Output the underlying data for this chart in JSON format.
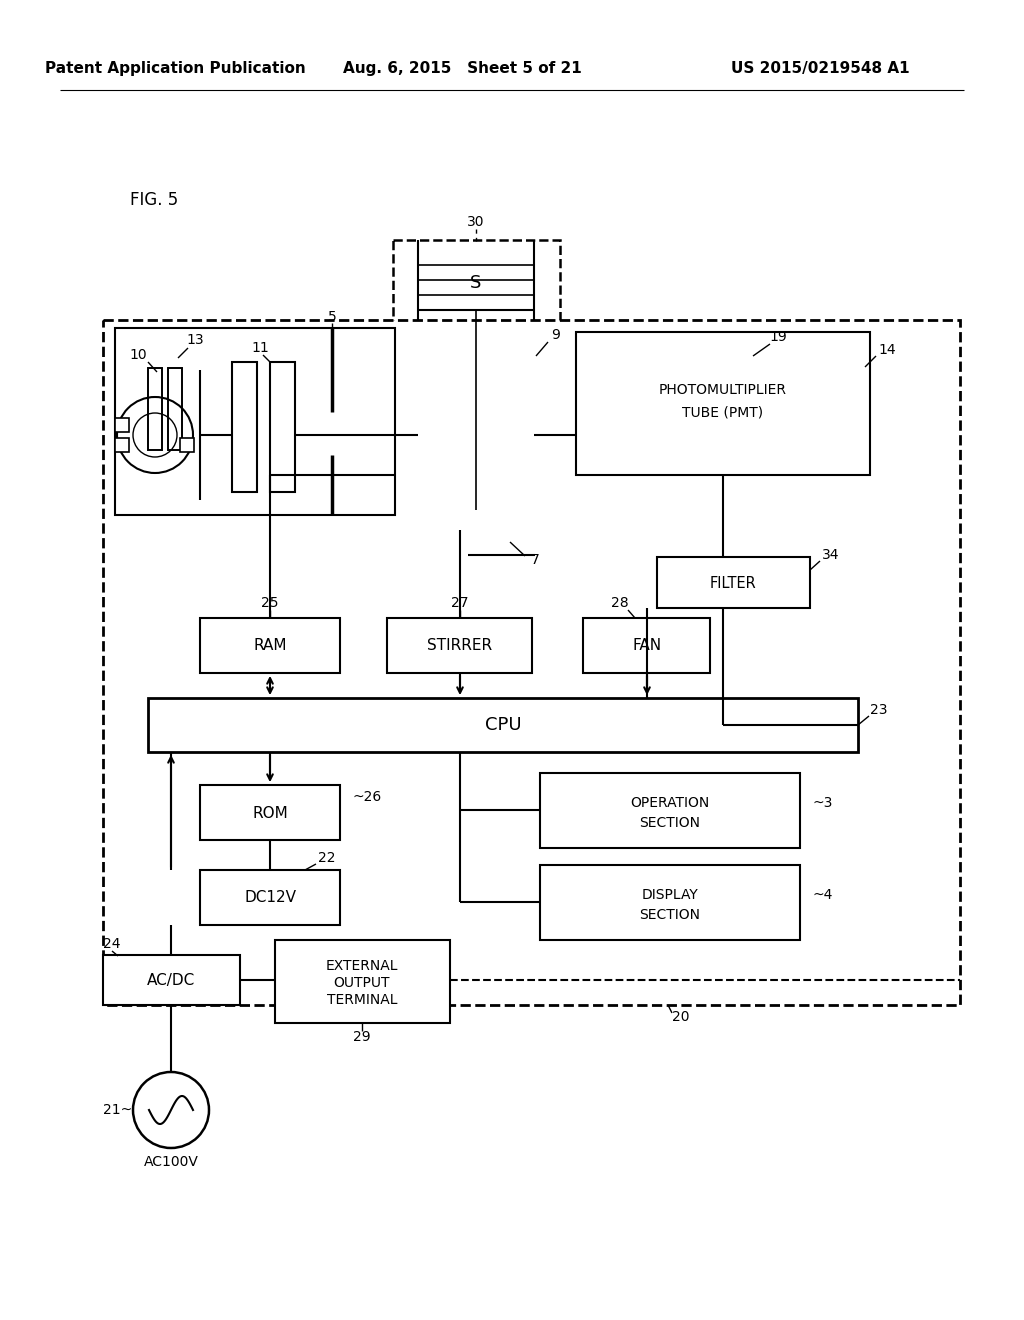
{
  "header_left": "Patent Application Publication",
  "header_mid": "Aug. 6, 2015   Sheet 5 of 21",
  "header_right": "US 2015/0219548 A1",
  "fig_label": "FIG. 5"
}
